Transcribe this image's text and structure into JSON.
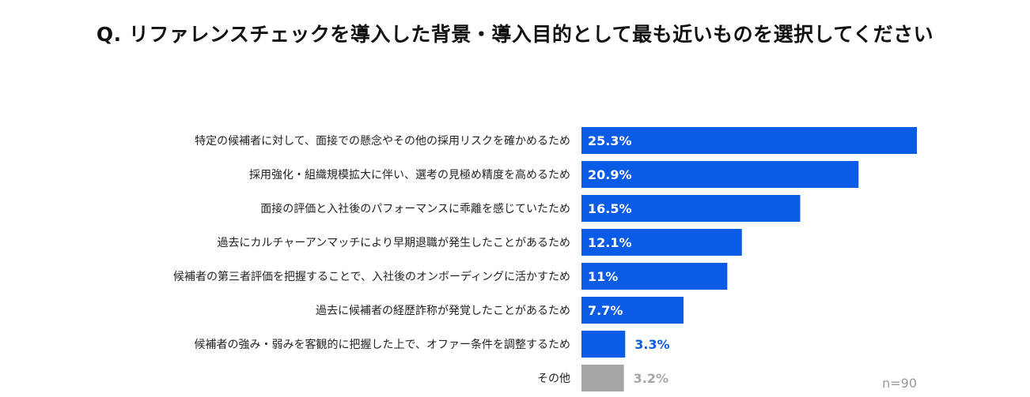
{
  "chart_data": {
    "type": "bar",
    "orientation": "horizontal",
    "title": "Q. リファレンスチェックを導入した背景・導入目的として最も近いものを選択してください",
    "categories": [
      "特定の候補者に対して、面接での懸念やその他の採用リスクを確かめるため",
      "採用強化・組織規模拡大に伴い、選考の見極め精度を高めるため",
      "面接の評価と入社後のパフォーマンスに乖離を感じていたため",
      "過去にカルチャーアンマッチにより早期退職が発生したことがあるため",
      "候補者の第三者評価を把握することで、入社後のオンボーディングに活かすため",
      "過去に候補者の経歴詐称が発覚したことがあるため",
      "候補者の強み・弱みを客観的に把握した上で、オファー条件を調整するため",
      "その他"
    ],
    "values": [
      25.3,
      20.9,
      16.5,
      12.1,
      11,
      7.7,
      3.3,
      3.2
    ],
    "value_labels": [
      "25.3%",
      "20.9%",
      "16.5%",
      "12.1%",
      "11%",
      "7.7%",
      "3.3%",
      "3.2%"
    ],
    "bar_colors": [
      "#0a5ce6",
      "#0a5ce6",
      "#0a5ce6",
      "#0a5ce6",
      "#0a5ce6",
      "#0a5ce6",
      "#0a5ce6",
      "#a6a6a6"
    ],
    "outside_label_colors": [
      "#0a5ce6",
      "#0a5ce6",
      "#0a5ce6",
      "#0a5ce6",
      "#0a5ce6",
      "#0a5ce6",
      "#0a5ce6",
      "#a6a6a6"
    ],
    "xlim": [
      0,
      25.3
    ],
    "grid": false,
    "legend": "none",
    "note": "n=90"
  }
}
